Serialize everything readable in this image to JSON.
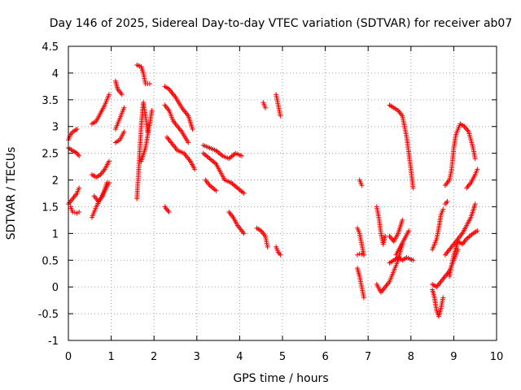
{
  "chart_data": {
    "type": "scatter",
    "title": "Day 146 of 2025, Sidereal Day-to-day VTEC variation (SDTVAR) for receiver ab07",
    "xlabel": "GPS time / hours",
    "ylabel": "SDTVAR / TECUs",
    "xlim": [
      0,
      10
    ],
    "ylim": [
      -1,
      4.5
    ],
    "xticks": [
      "0",
      "1",
      "2",
      "3",
      "4",
      "5",
      "6",
      "7",
      "8",
      "9",
      "10"
    ],
    "yticks": [
      "-1",
      "-0.5",
      "0",
      "0.5",
      "1",
      "1.5",
      "2",
      "2.5",
      "3",
      "3.5",
      "4",
      "4.5"
    ],
    "grid": true,
    "marker": "+",
    "color": "#ff0000",
    "tracks": [
      [
        [
          0.0,
          2.75
        ],
        [
          0.05,
          2.85
        ],
        [
          0.1,
          2.9
        ],
        [
          0.2,
          2.95
        ]
      ],
      [
        [
          0.0,
          2.6
        ],
        [
          0.1,
          2.55
        ],
        [
          0.2,
          2.5
        ],
        [
          0.25,
          2.45
        ]
      ],
      [
        [
          0.0,
          1.55
        ],
        [
          0.1,
          1.65
        ],
        [
          0.2,
          1.75
        ],
        [
          0.25,
          1.85
        ]
      ],
      [
        [
          0.05,
          1.5
        ],
        [
          0.1,
          1.4
        ],
        [
          0.2,
          1.38
        ],
        [
          0.25,
          1.4
        ]
      ],
      [
        [
          0.55,
          3.05
        ],
        [
          0.65,
          3.1
        ],
        [
          0.75,
          3.25
        ],
        [
          0.85,
          3.4
        ],
        [
          0.95,
          3.6
        ]
      ],
      [
        [
          0.55,
          2.1
        ],
        [
          0.65,
          2.05
        ],
        [
          0.75,
          2.1
        ],
        [
          0.85,
          2.2
        ],
        [
          0.95,
          2.35
        ]
      ],
      [
        [
          0.55,
          1.3
        ],
        [
          0.65,
          1.5
        ],
        [
          0.75,
          1.65
        ],
        [
          0.85,
          1.8
        ],
        [
          0.95,
          1.95
        ]
      ],
      [
        [
          0.6,
          1.7
        ],
        [
          0.7,
          1.6
        ],
        [
          0.8,
          1.7
        ],
        [
          0.9,
          1.95
        ]
      ],
      [
        [
          1.1,
          3.85
        ],
        [
          1.15,
          3.7
        ],
        [
          1.25,
          3.6
        ]
      ],
      [
        [
          1.1,
          2.7
        ],
        [
          1.2,
          2.75
        ],
        [
          1.3,
          2.9
        ]
      ],
      [
        [
          1.1,
          2.95
        ],
        [
          1.2,
          3.15
        ],
        [
          1.3,
          3.35
        ]
      ],
      [
        [
          1.6,
          4.15
        ],
        [
          1.7,
          4.12
        ],
        [
          1.75,
          4.0
        ],
        [
          1.8,
          3.8
        ],
        [
          1.9,
          3.8
        ]
      ],
      [
        [
          1.6,
          1.65
        ],
        [
          1.65,
          2.3
        ],
        [
          1.7,
          3.0
        ],
        [
          1.75,
          3.45
        ],
        [
          1.8,
          3.2
        ],
        [
          1.85,
          2.9
        ]
      ],
      [
        [
          1.7,
          2.35
        ],
        [
          1.8,
          2.6
        ],
        [
          1.9,
          3.05
        ],
        [
          1.95,
          3.3
        ]
      ],
      [
        [
          2.25,
          3.75
        ],
        [
          2.35,
          3.7
        ],
        [
          2.5,
          3.55
        ],
        [
          2.65,
          3.35
        ],
        [
          2.8,
          3.2
        ],
        [
          2.9,
          2.95
        ]
      ],
      [
        [
          2.25,
          3.4
        ],
        [
          2.35,
          3.3
        ],
        [
          2.45,
          3.1
        ],
        [
          2.55,
          3.0
        ],
        [
          2.65,
          2.9
        ],
        [
          2.8,
          2.7
        ]
      ],
      [
        [
          2.3,
          2.8
        ],
        [
          2.4,
          2.7
        ],
        [
          2.55,
          2.55
        ],
        [
          2.7,
          2.5
        ],
        [
          2.85,
          2.35
        ],
        [
          2.95,
          2.2
        ]
      ],
      [
        [
          2.25,
          1.5
        ],
        [
          2.35,
          1.4
        ]
      ],
      [
        [
          3.15,
          2.65
        ],
        [
          3.3,
          2.6
        ],
        [
          3.45,
          2.55
        ],
        [
          3.6,
          2.45
        ],
        [
          3.75,
          2.4
        ],
        [
          3.9,
          2.5
        ],
        [
          4.05,
          2.45
        ]
      ],
      [
        [
          3.15,
          2.5
        ],
        [
          3.3,
          2.4
        ],
        [
          3.45,
          2.3
        ],
        [
          3.55,
          2.15
        ],
        [
          3.65,
          2.0
        ],
        [
          3.8,
          1.95
        ],
        [
          3.95,
          1.85
        ],
        [
          4.1,
          1.75
        ]
      ],
      [
        [
          3.2,
          2.0
        ],
        [
          3.3,
          1.9
        ],
        [
          3.45,
          1.8
        ]
      ],
      [
        [
          3.75,
          1.4
        ],
        [
          3.85,
          1.3
        ],
        [
          3.95,
          1.15
        ],
        [
          4.1,
          1.0
        ]
      ],
      [
        [
          4.4,
          1.1
        ],
        [
          4.5,
          1.05
        ],
        [
          4.6,
          0.95
        ],
        [
          4.65,
          0.75
        ]
      ],
      [
        [
          4.55,
          3.45
        ],
        [
          4.6,
          3.35
        ]
      ],
      [
        [
          4.85,
          3.6
        ],
        [
          4.9,
          3.4
        ],
        [
          4.95,
          3.2
        ]
      ],
      [
        [
          4.85,
          0.75
        ],
        [
          4.9,
          0.65
        ],
        [
          4.95,
          0.6
        ]
      ],
      [
        [
          6.75,
          0.35
        ],
        [
          6.8,
          0.2
        ],
        [
          6.85,
          0.0
        ],
        [
          6.9,
          -0.2
        ]
      ],
      [
        [
          6.75,
          0.6
        ],
        [
          6.8,
          0.62
        ],
        [
          6.9,
          0.6
        ]
      ],
      [
        [
          6.8,
          2.0
        ],
        [
          6.85,
          1.9
        ]
      ],
      [
        [
          6.75,
          1.1
        ],
        [
          6.8,
          1.0
        ],
        [
          6.85,
          0.8
        ],
        [
          6.9,
          0.6
        ]
      ],
      [
        [
          7.2,
          1.5
        ],
        [
          7.25,
          1.3
        ],
        [
          7.3,
          1.0
        ],
        [
          7.35,
          0.8
        ],
        [
          7.4,
          0.95
        ]
      ],
      [
        [
          7.2,
          0.05
        ],
        [
          7.3,
          -0.1
        ],
        [
          7.4,
          0.0
        ],
        [
          7.5,
          0.1
        ],
        [
          7.6,
          0.3
        ],
        [
          7.7,
          0.5
        ],
        [
          7.8,
          0.8
        ]
      ],
      [
        [
          7.5,
          0.95
        ],
        [
          7.6,
          0.85
        ],
        [
          7.7,
          1.0
        ],
        [
          7.8,
          1.25
        ]
      ],
      [
        [
          7.5,
          3.4
        ],
        [
          7.6,
          3.35
        ],
        [
          7.7,
          3.3
        ],
        [
          7.8,
          3.2
        ],
        [
          7.9,
          2.8
        ],
        [
          8.0,
          2.2
        ],
        [
          8.05,
          1.85
        ]
      ],
      [
        [
          7.5,
          0.45
        ],
        [
          7.6,
          0.5
        ],
        [
          7.7,
          0.55
        ],
        [
          7.8,
          0.5
        ],
        [
          7.9,
          0.55
        ],
        [
          8.05,
          0.5
        ]
      ],
      [
        [
          7.65,
          0.6
        ],
        [
          7.75,
          0.75
        ],
        [
          7.85,
          0.9
        ],
        [
          7.95,
          1.05
        ]
      ],
      [
        [
          8.5,
          0.7
        ],
        [
          8.55,
          0.8
        ],
        [
          8.6,
          0.9
        ],
        [
          8.65,
          1.1
        ],
        [
          8.7,
          1.35
        ],
        [
          8.75,
          1.45
        ]
      ],
      [
        [
          8.5,
          -0.05
        ],
        [
          8.55,
          -0.2
        ],
        [
          8.6,
          -0.45
        ],
        [
          8.65,
          -0.55
        ],
        [
          8.7,
          -0.4
        ],
        [
          8.75,
          -0.2
        ]
      ],
      [
        [
          8.5,
          0.05
        ],
        [
          8.6,
          0.0
        ],
        [
          8.7,
          0.1
        ],
        [
          8.8,
          0.2
        ],
        [
          8.9,
          0.3
        ],
        [
          9.0,
          0.5
        ],
        [
          9.1,
          0.7
        ]
      ],
      [
        [
          8.8,
          1.9
        ],
        [
          8.9,
          2.0
        ],
        [
          8.95,
          2.2
        ],
        [
          9.0,
          2.6
        ],
        [
          9.05,
          2.85
        ],
        [
          9.15,
          3.05
        ],
        [
          9.25,
          3.0
        ],
        [
          9.35,
          2.9
        ],
        [
          9.45,
          2.6
        ],
        [
          9.5,
          2.4
        ]
      ],
      [
        [
          8.8,
          0.6
        ],
        [
          8.9,
          0.7
        ],
        [
          9.0,
          0.8
        ],
        [
          9.1,
          0.9
        ],
        [
          9.2,
          1.0
        ],
        [
          9.3,
          1.15
        ],
        [
          9.4,
          1.3
        ],
        [
          9.5,
          1.55
        ]
      ],
      [
        [
          8.9,
          0.2
        ],
        [
          9.0,
          0.6
        ],
        [
          9.1,
          0.85
        ],
        [
          9.2,
          0.8
        ],
        [
          9.3,
          0.9
        ],
        [
          9.45,
          1.0
        ],
        [
          9.55,
          1.05
        ]
      ],
      [
        [
          9.3,
          1.85
        ],
        [
          9.4,
          1.95
        ],
        [
          9.5,
          2.1
        ],
        [
          9.55,
          2.2
        ]
      ],
      [
        [
          8.8,
          1.55
        ],
        [
          8.85,
          1.6
        ]
      ]
    ]
  }
}
